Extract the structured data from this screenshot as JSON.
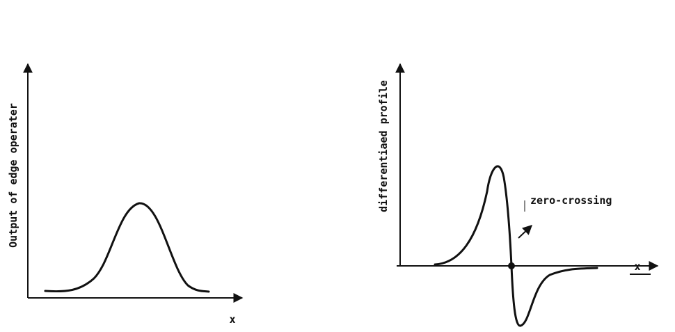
{
  "panels": [
    {
      "y_label": "Output of edge operater",
      "x_label": "x"
    },
    {
      "y_label": "differentiaed profile",
      "x_label": "x",
      "annotation": "zero-crossing"
    }
  ]
}
